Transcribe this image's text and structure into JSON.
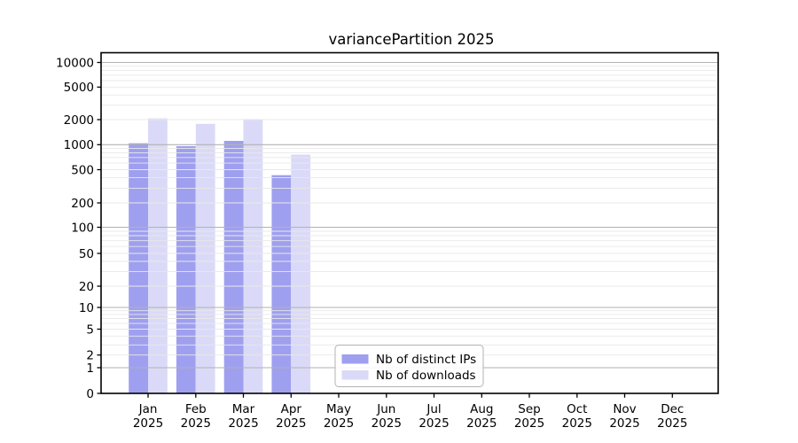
{
  "figure": {
    "title": "variancePartition 2025"
  },
  "chart_data": {
    "type": "bar",
    "title": "variancePartition 2025",
    "categories": [
      "Jan",
      "Feb",
      "Mar",
      "Apr",
      "May",
      "Jun",
      "Jul",
      "Aug",
      "Sep",
      "Oct",
      "Nov",
      "Dec"
    ],
    "year_label": "2025",
    "series": [
      {
        "name": "Nb of distinct IPs",
        "color": "#9f9ff0",
        "values": [
          1040,
          960,
          1110,
          430,
          null,
          null,
          null,
          null,
          null,
          null,
          null,
          null
        ]
      },
      {
        "name": "Nb of downloads",
        "color": "#dadaf8",
        "values": [
          2070,
          1780,
          2030,
          760,
          null,
          null,
          null,
          null,
          null,
          null,
          null,
          null
        ]
      }
    ],
    "yscale": "symlog",
    "y_tick_labels": [
      0,
      1,
      2,
      5,
      10,
      20,
      50,
      100,
      200,
      500,
      1000,
      2000,
      5000,
      10000
    ],
    "ylim": [
      0,
      13000
    ],
    "xlabel": "",
    "ylabel": "",
    "grid": "horizontal major and minor gridlines",
    "legend_position": "inside axes, lower center",
    "colors": {
      "major_grid": "#b2b2b2",
      "minor_grid": "#e8e8e8",
      "axis": "#000000",
      "background": "#ffffff"
    }
  }
}
